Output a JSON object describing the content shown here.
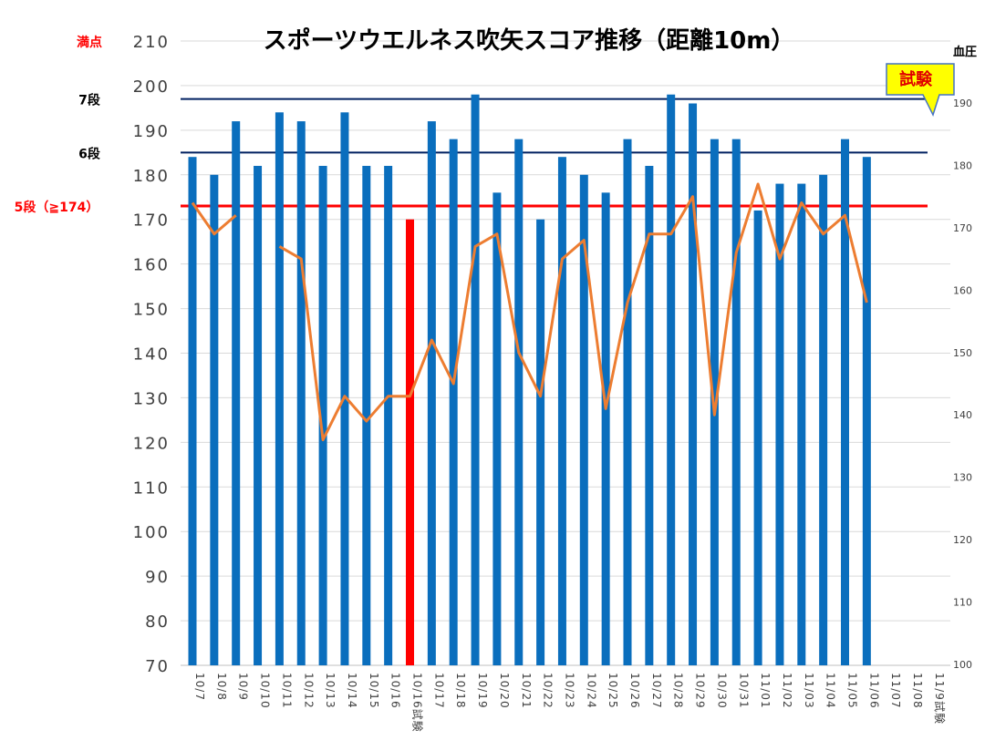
{
  "chart_data": {
    "type": "bar",
    "title": "スポーツウエルネス吹矢スコア推移（距離10m）",
    "y2label": "血圧",
    "ylim": [
      70,
      210
    ],
    "y_ticks": [
      70,
      80,
      90,
      100,
      110,
      120,
      130,
      140,
      150,
      160,
      170,
      180,
      190,
      200,
      210
    ],
    "y2lim": [
      100,
      195
    ],
    "y2_ticks": [
      100,
      110,
      120,
      130,
      140,
      150,
      160,
      170,
      180,
      190
    ],
    "categories": [
      "10/7",
      "10/8",
      "10/9",
      "10/10",
      "10/11",
      "10/12",
      "10/13",
      "10/14",
      "10/15",
      "10/16",
      "10/16試験",
      "10/17",
      "10/18",
      "10/19",
      "10/20",
      "10/21",
      "10/22",
      "10/23",
      "10/24",
      "10/25",
      "10/26",
      "10/27",
      "10/28",
      "10/29",
      "10/30",
      "10/31",
      "11/01",
      "11/02",
      "11/03",
      "11/04",
      "11/05",
      "11/06",
      "11/07",
      "11/08",
      "11/9試験"
    ],
    "series": [
      {
        "kind": "bar",
        "axis": "left",
        "color": "#0a6ebd",
        "highlight_color": "#ff0000",
        "values": [
          184,
          180,
          192,
          182,
          194,
          192,
          182,
          194,
          182,
          182,
          170,
          192,
          188,
          198,
          176,
          188,
          170,
          184,
          180,
          176,
          188,
          182,
          198,
          196,
          188,
          188,
          172,
          178,
          178,
          180,
          188,
          184,
          null,
          null,
          null
        ],
        "highlight_index": 10
      },
      {
        "kind": "line",
        "axis": "right",
        "color": "#ed7d31",
        "values": [
          174,
          169,
          172,
          null,
          167,
          165,
          136,
          143,
          139,
          143,
          143,
          152,
          145,
          167,
          169,
          150,
          143,
          165,
          168,
          141,
          158,
          169,
          169,
          175,
          140,
          166,
          177,
          165,
          174,
          169,
          172,
          158,
          null,
          null,
          null
        ]
      }
    ],
    "reference_lines": [
      {
        "label": "満点",
        "value": 210,
        "color": "#ff0000"
      },
      {
        "label": "7段",
        "value": 197,
        "color": "#002060"
      },
      {
        "label": "6段",
        "value": 185,
        "color": "#002060"
      },
      {
        "label": "5段（≧174）",
        "value": 173,
        "color": "#ff0000"
      }
    ],
    "callout": {
      "text": "試験",
      "color": "#ffff00",
      "text_color": "#e00000"
    },
    "grid": true
  }
}
